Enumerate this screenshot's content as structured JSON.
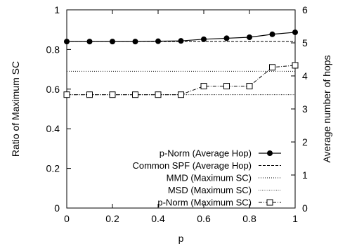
{
  "chart_data": {
    "type": "line",
    "xlabel": "p",
    "ylabel_left": "Ratio of Maximum SC",
    "ylabel_right": "Average number of hops",
    "x": [
      0,
      0.1,
      0.2,
      0.3,
      0.4,
      0.5,
      0.6,
      0.7,
      0.8,
      0.9,
      1.0
    ],
    "x_ticks": [
      "0",
      "0.2",
      "0.4",
      "0.6",
      "0.8",
      "1"
    ],
    "y_left_ticks": [
      "0",
      "0.2",
      "0.4",
      "0.6",
      "0.8",
      "1"
    ],
    "y_right_ticks": [
      "0",
      "1",
      "2",
      "3",
      "4",
      "5",
      "6"
    ],
    "xlim": [
      0,
      1
    ],
    "ylim_left": [
      0,
      1
    ],
    "ylim_right": [
      0,
      6
    ],
    "legend_position": "bottom-right",
    "grid": false,
    "series": [
      {
        "name": "p-Norm (Average Hop)",
        "axis": "right",
        "style": "solid",
        "marker": "filled-circle",
        "values": [
          5.04,
          5.04,
          5.04,
          5.04,
          5.05,
          5.06,
          5.11,
          5.14,
          5.17,
          5.26,
          5.32
        ]
      },
      {
        "name": "Common SPF (Average Hop)",
        "axis": "right",
        "style": "dashed",
        "marker": "none",
        "values": [
          5.04,
          5.04,
          5.04,
          5.04,
          5.04,
          5.04,
          5.04,
          5.04,
          5.04,
          5.04,
          5.04
        ]
      },
      {
        "name": "MMD (Maximum SC)",
        "axis": "left",
        "style": "dotted",
        "marker": "none",
        "values": [
          0.69,
          0.69,
          0.69,
          0.69,
          0.69,
          0.69,
          0.69,
          0.69,
          0.69,
          0.69,
          0.69
        ]
      },
      {
        "name": "MSD (Maximum SC)",
        "axis": "left",
        "style": "dotted-fine",
        "marker": "none",
        "values": [
          0.572,
          0.572,
          0.572,
          0.572,
          0.572,
          0.572,
          0.572,
          0.572,
          0.572,
          0.572,
          0.572
        ]
      },
      {
        "name": "p-Norm (Maximum SC)",
        "axis": "left",
        "style": "dash-dot",
        "marker": "open-square",
        "values": [
          0.572,
          0.572,
          0.572,
          0.572,
          0.572,
          0.572,
          0.615,
          0.615,
          0.615,
          0.71,
          0.72
        ]
      }
    ]
  }
}
